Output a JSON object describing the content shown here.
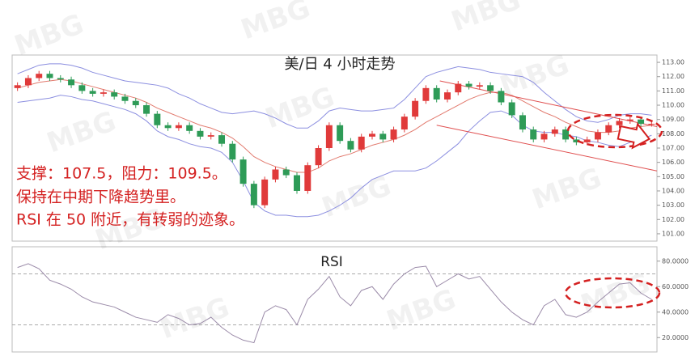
{
  "watermark": "MBG",
  "chart_data": [
    {
      "type": "candlestick",
      "title": "美/日 4 小时走势",
      "annotations": [
        "支撑：107.5，阻力：109.5。",
        "保持在中期下降趋势里。",
        "RSI 在 50 附近，有转弱的迹象。"
      ],
      "up_color": "#e03a3a",
      "down_color": "#2e9b57",
      "open": [
        111.2,
        111.4,
        111.9,
        112.2,
        111.9,
        111.8,
        111.4,
        111.0,
        110.8,
        110.9,
        110.6,
        110.3,
        110.0,
        109.4,
        108.6,
        108.4,
        108.6,
        108.2,
        107.8,
        107.9,
        107.3,
        106.2,
        104.5,
        103.0,
        104.8,
        105.5,
        105.1,
        104.0,
        105.8,
        107.0,
        108.6,
        107.5,
        106.9,
        107.8,
        108.0,
        107.6,
        108.3,
        109.2,
        110.3,
        111.2,
        110.4,
        110.9,
        111.5,
        111.3,
        111.4,
        111.0,
        110.2,
        109.3,
        108.3,
        107.6,
        108.0,
        108.3,
        107.6,
        107.4,
        107.6,
        108.1,
        108.6,
        108.9,
        109.0,
        108.7
      ],
      "high": [
        111.6,
        112.1,
        112.4,
        112.4,
        112.1,
        112.0,
        111.6,
        111.2,
        111.1,
        111.1,
        110.8,
        110.5,
        110.2,
        109.6,
        108.8,
        108.8,
        108.8,
        108.4,
        108.1,
        108.1,
        107.5,
        106.4,
        104.7,
        105.0,
        105.7,
        105.7,
        105.3,
        106.0,
        107.2,
        108.8,
        108.8,
        107.7,
        108.0,
        108.2,
        108.2,
        108.5,
        109.4,
        110.5,
        111.4,
        111.4,
        111.1,
        111.7,
        111.7,
        111.6,
        111.6,
        111.2,
        110.4,
        109.5,
        108.5,
        108.2,
        108.5,
        108.5,
        107.8,
        107.8,
        108.3,
        108.8,
        109.1,
        109.2,
        109.2,
        108.9
      ],
      "low": [
        111.0,
        111.2,
        111.7,
        111.7,
        111.6,
        111.2,
        110.8,
        110.6,
        110.6,
        110.4,
        110.1,
        109.8,
        109.2,
        108.4,
        108.2,
        108.2,
        108.0,
        107.6,
        107.6,
        107.1,
        106.0,
        104.3,
        102.8,
        102.8,
        104.6,
        104.9,
        103.8,
        103.8,
        105.6,
        106.8,
        107.3,
        106.7,
        106.7,
        107.6,
        107.4,
        107.4,
        108.1,
        109.0,
        110.1,
        110.2,
        110.2,
        110.7,
        111.1,
        111.1,
        110.8,
        110.0,
        109.1,
        108.1,
        107.4,
        107.4,
        107.8,
        107.4,
        107.2,
        107.2,
        107.4,
        107.9,
        108.4,
        108.7,
        108.5,
        108.5
      ],
      "close": [
        111.4,
        111.9,
        112.2,
        111.9,
        111.8,
        111.4,
        111.0,
        110.8,
        110.9,
        110.6,
        110.3,
        110.0,
        109.4,
        108.6,
        108.4,
        108.6,
        108.2,
        107.8,
        107.9,
        107.3,
        106.2,
        104.5,
        103.0,
        104.8,
        105.5,
        105.1,
        104.0,
        105.8,
        107.0,
        108.6,
        107.5,
        106.9,
        107.8,
        108.0,
        107.6,
        108.3,
        109.2,
        110.3,
        111.2,
        110.4,
        110.9,
        111.5,
        111.3,
        111.4,
        111.0,
        110.2,
        109.3,
        108.3,
        107.6,
        108.0,
        108.3,
        107.6,
        107.4,
        107.6,
        108.1,
        108.6,
        108.9,
        109.0,
        108.7,
        108.7
      ],
      "overlays": [
        {
          "color": "#8c8fe0",
          "values": [
            112.2,
            112.5,
            112.8,
            112.9,
            112.9,
            112.8,
            112.6,
            112.3,
            112.1,
            111.9,
            111.7,
            111.6,
            111.5,
            111.4,
            111.2,
            110.8,
            110.5,
            110.1,
            109.8,
            109.5,
            109.4,
            109.5,
            109.6,
            109.4,
            109.1,
            108.7,
            108.4,
            108.4,
            108.9,
            109.6,
            109.8,
            109.7,
            109.6,
            109.6,
            109.7,
            109.8,
            110.4,
            111.2,
            112.0,
            112.3,
            112.5,
            112.7,
            112.6,
            112.5,
            112.3,
            112.2,
            112.1,
            112.0,
            111.6,
            110.9,
            110.3,
            109.7,
            109.2,
            108.9,
            108.8,
            109.0,
            109.3,
            109.4,
            109.4,
            109.3
          ]
        },
        {
          "color": "#e27a6e",
          "values": [
            111.2,
            111.4,
            111.6,
            111.7,
            111.8,
            111.7,
            111.5,
            111.3,
            111.1,
            110.9,
            110.7,
            110.5,
            110.2,
            109.8,
            109.5,
            109.2,
            108.9,
            108.6,
            108.4,
            108.1,
            107.7,
            107.1,
            106.4,
            106.0,
            105.7,
            105.5,
            105.3,
            105.3,
            105.6,
            106.1,
            106.4,
            106.6,
            106.9,
            107.2,
            107.4,
            107.6,
            107.9,
            108.3,
            108.8,
            109.2,
            109.6,
            110.0,
            110.4,
            110.7,
            110.9,
            110.9,
            110.7,
            110.3,
            109.9,
            109.5,
            109.2,
            108.8,
            108.5,
            108.2,
            108.1,
            108.1,
            108.2,
            108.4,
            108.5,
            108.6
          ]
        },
        {
          "color": "#8c8fe0",
          "values": [
            110.2,
            110.3,
            110.4,
            110.5,
            110.7,
            110.6,
            110.4,
            110.3,
            110.1,
            109.9,
            109.7,
            109.4,
            108.9,
            108.2,
            107.8,
            107.6,
            107.3,
            107.1,
            107.0,
            106.7,
            106.0,
            104.7,
            103.2,
            102.6,
            102.3,
            102.3,
            102.2,
            102.2,
            102.3,
            102.6,
            103.0,
            103.5,
            104.2,
            104.8,
            105.1,
            105.4,
            105.4,
            105.4,
            105.6,
            106.1,
            106.7,
            107.3,
            108.2,
            108.9,
            109.5,
            109.6,
            109.3,
            108.6,
            108.2,
            108.1,
            108.1,
            107.9,
            107.8,
            107.5,
            107.4,
            107.2,
            107.1,
            107.4,
            107.6,
            107.9
          ]
        }
      ],
      "trendlines": [
        {
          "color": "#e05050",
          "x": [
            39.3,
            59.5
          ],
          "y": [
            111.7,
            108.5
          ]
        },
        {
          "color": "#e05050",
          "x": [
            39.0,
            59.5
          ],
          "y": [
            108.6,
            105.4
          ]
        }
      ],
      "ylim": [
        100.6,
        113.4
      ],
      "yticks": [
        {
          "value": 101,
          "label": "101.00"
        },
        {
          "value": 102,
          "label": "102.00"
        },
        {
          "value": 103,
          "label": "103.00"
        },
        {
          "value": 104,
          "label": "104.00"
        },
        {
          "value": 105,
          "label": "105.00"
        },
        {
          "value": 106,
          "label": "106.00"
        },
        {
          "value": 107,
          "label": "107.00"
        },
        {
          "value": 108,
          "label": "108.00"
        },
        {
          "value": 109,
          "label": "109.00"
        },
        {
          "value": 110,
          "label": "110.00"
        },
        {
          "value": 111,
          "label": "111.00"
        },
        {
          "value": 112,
          "label": "112.00"
        },
        {
          "value": 113,
          "label": "113.00"
        }
      ]
    },
    {
      "type": "line",
      "title": "RSI",
      "color": "#9a8aa8",
      "values": [
        75,
        78,
        74,
        65,
        62,
        58,
        52,
        48,
        46,
        44,
        40,
        36,
        34,
        32,
        38,
        35,
        30,
        31,
        36,
        28,
        22,
        18,
        16,
        40,
        45,
        42,
        30,
        50,
        58,
        68,
        52,
        45,
        57,
        60,
        50,
        62,
        70,
        75,
        76,
        60,
        65,
        70,
        66,
        68,
        58,
        48,
        40,
        34,
        30,
        45,
        50,
        38,
        36,
        40,
        48,
        55,
        62,
        63,
        55,
        50
      ],
      "reference_lines": [
        30,
        70
      ],
      "ylim": [
        10,
        90
      ],
      "yticks": [
        {
          "value": 20,
          "label": "20.0000"
        },
        {
          "value": 40,
          "label": "40.0000"
        },
        {
          "value": 60,
          "label": "60.0000"
        },
        {
          "value": 80,
          "label": "80.0000"
        }
      ]
    }
  ]
}
